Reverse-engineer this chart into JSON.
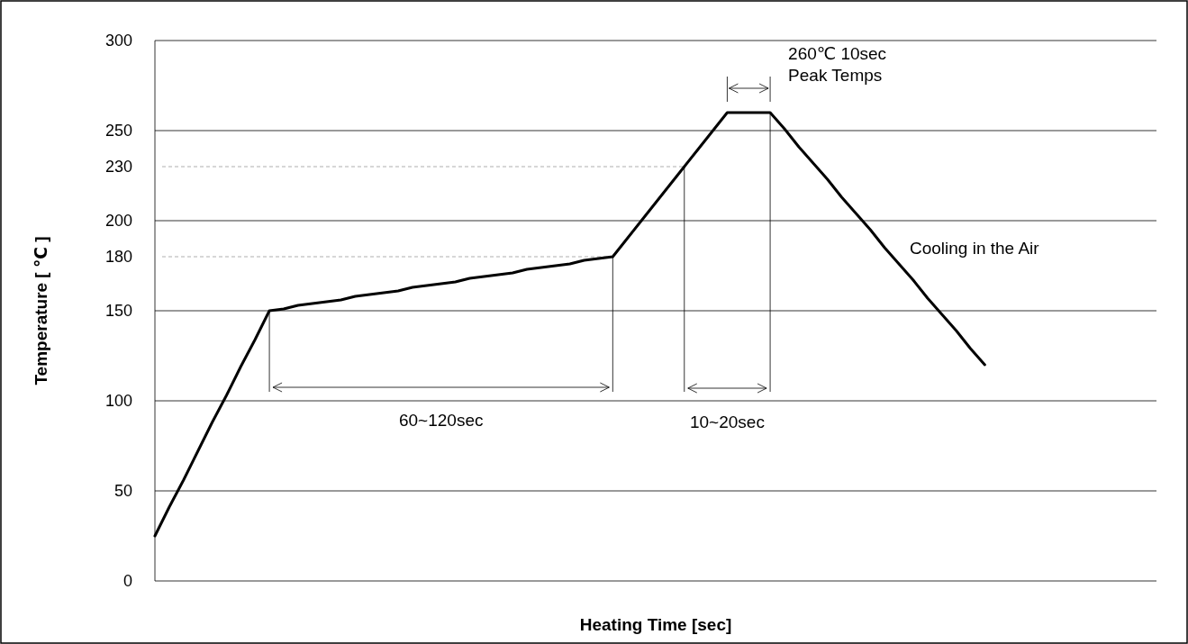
{
  "chart_data": {
    "type": "line",
    "xlabel": "Heating Time [sec]",
    "ylabel": "Temperature  [ ℃ ]",
    "categories": [
      null,
      null,
      null,
      null,
      null,
      null,
      null,
      null,
      null,
      null,
      null,
      null,
      null,
      null,
      null,
      null,
      null,
      null,
      null,
      null,
      null,
      null,
      null,
      null,
      null,
      null,
      null,
      null,
      null,
      null,
      null,
      null,
      null,
      null,
      null,
      null,
      null,
      null,
      null,
      null,
      null,
      null,
      null,
      null,
      null,
      null,
      null,
      null,
      null,
      null,
      null,
      null,
      null,
      null,
      null,
      null,
      null,
      null,
      null,
      null,
      null,
      null,
      null,
      null,
      null,
      null,
      null,
      null,
      null,
      null,
      null
    ],
    "series": [
      {
        "color": "#000000",
        "values": [
          25,
          41,
          56,
          72,
          88,
          103,
          119,
          134,
          150,
          151,
          153,
          154,
          155,
          156,
          158,
          159,
          160,
          161,
          163,
          164,
          165,
          166,
          168,
          169,
          170,
          171,
          173,
          174,
          175,
          176,
          178,
          179,
          180,
          190,
          200,
          210,
          220,
          230,
          240,
          250,
          260,
          260,
          260,
          260,
          251,
          241,
          232,
          223,
          213,
          204,
          195,
          185,
          176,
          167,
          157,
          148,
          139,
          129,
          120,
          null,
          null,
          null,
          null,
          null,
          null,
          null,
          null,
          null,
          null,
          null,
          null
        ]
      }
    ],
    "ylim": [
      0,
      300
    ],
    "yticks": [
      0,
      50,
      100,
      150,
      180,
      200,
      230,
      250,
      300
    ],
    "grid": "y",
    "marker": "none",
    "line_style": "solid",
    "ref_lines": [
      {
        "axis": "y",
        "value": 180,
        "color": "#999999",
        "line_style": "dashed"
      },
      {
        "axis": "y",
        "value": 230,
        "color": "#999999",
        "line_style": "dashed"
      }
    ],
    "annotations": [
      "260℃ 10sec",
      "Peak Temps",
      "60~120sec",
      "10~20sec",
      "Cooling in the Air"
    ]
  }
}
